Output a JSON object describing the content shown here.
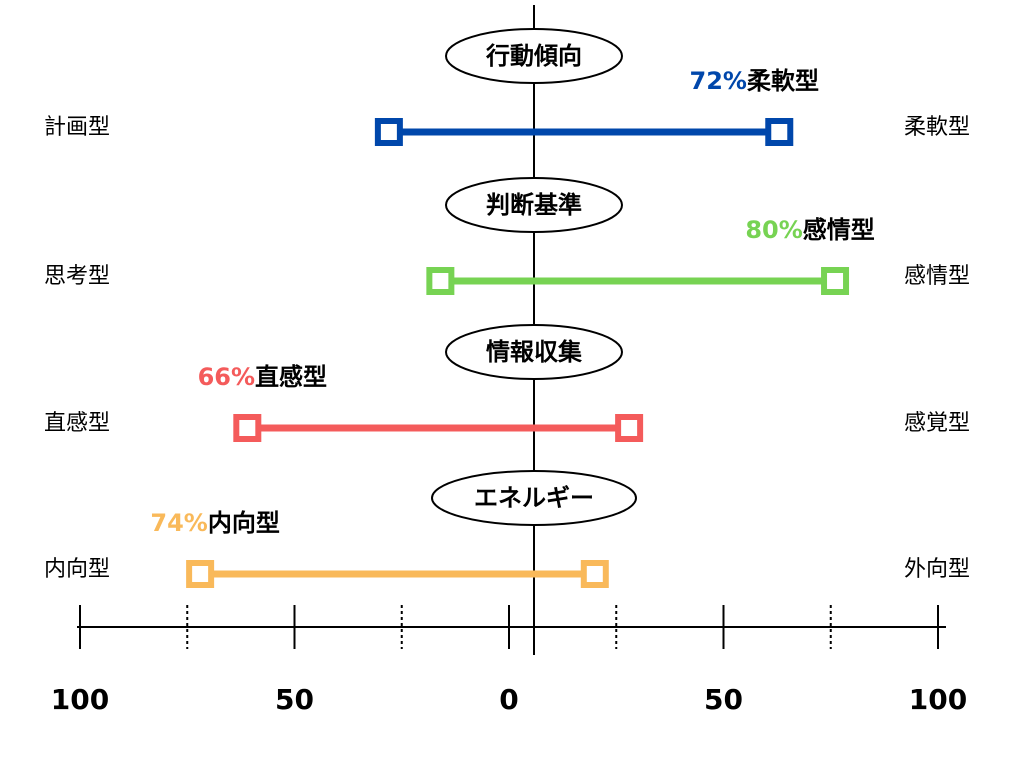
{
  "chart_data": {
    "type": "diverging-range",
    "xlim": [
      -100,
      100
    ],
    "xticks": [
      {
        "value": -100,
        "label": "100"
      },
      {
        "value": -50,
        "label": "50"
      },
      0,
      50,
      {
        "value": 100,
        "label": "100"
      }
    ],
    "minor_xticks": [
      -75,
      -25,
      25,
      75
    ],
    "rows": [
      {
        "name": "行動傾向",
        "left": "計画型",
        "right": "柔軟型",
        "color": "#0047ab",
        "values": [
          -28,
          63
        ],
        "percent": 72,
        "percent_label": "72%",
        "result": "柔軟型",
        "side": "right"
      },
      {
        "name": "判断基準",
        "left": "思考型",
        "right": "感情型",
        "color": "#77d353",
        "values": [
          -16,
          76
        ],
        "percent": 80,
        "percent_label": "80%",
        "result": "感情型",
        "side": "right"
      },
      {
        "name": "情報収集",
        "left": "直感型",
        "right": "感覚型",
        "color": "#f45b5b",
        "values": [
          -61,
          28
        ],
        "percent": 66,
        "percent_label": "66%",
        "result": "直感型",
        "side": "left"
      },
      {
        "name": "エネルギー",
        "left": "内向型",
        "right": "外向型",
        "color": "#f9b95a",
        "values": [
          -72,
          20
        ],
        "percent": 74,
        "percent_label": "74%",
        "result": "内向型",
        "side": "left"
      }
    ]
  }
}
